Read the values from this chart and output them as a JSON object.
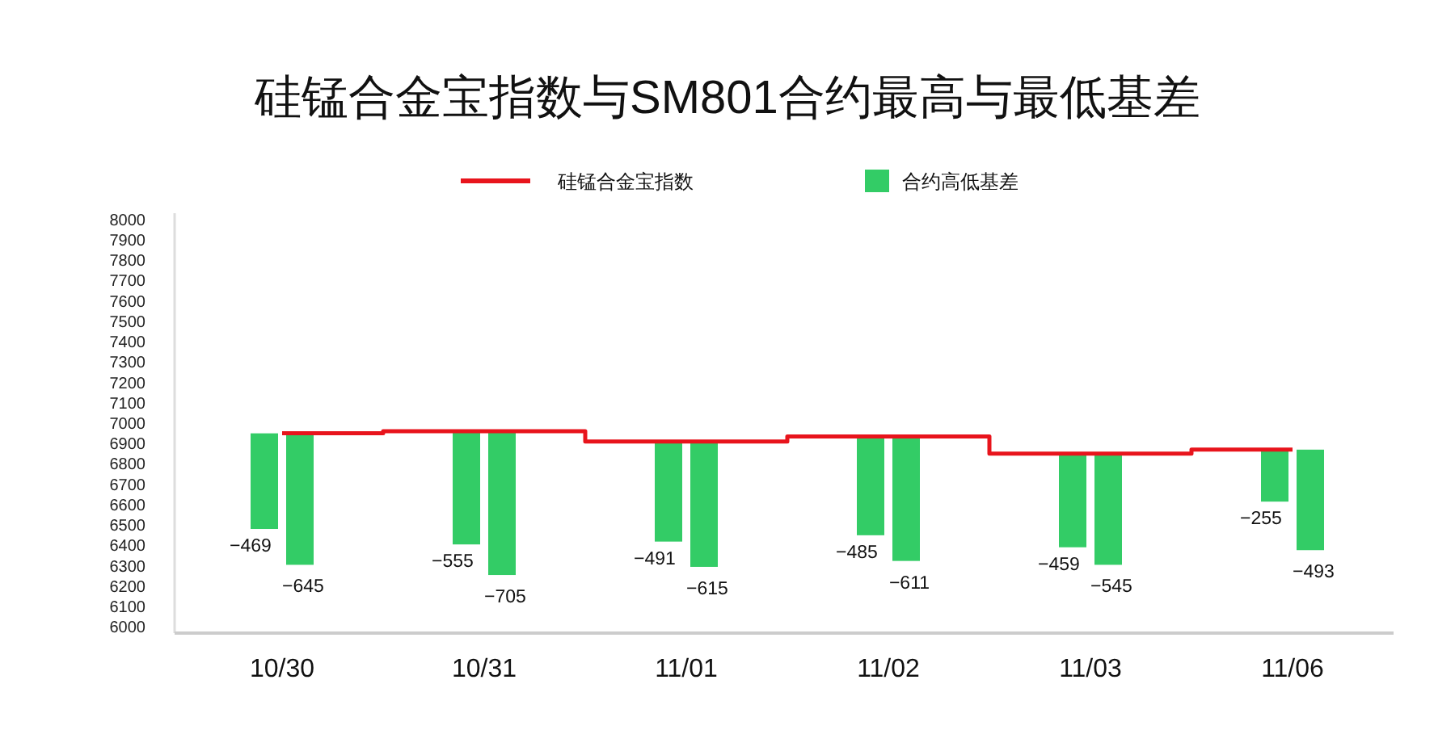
{
  "chart_data": {
    "type": "bar",
    "title": "硅锰合金宝指数与SM801合约最高与最低基差",
    "categories": [
      "10/30",
      "10/31",
      "11/01",
      "11/02",
      "11/03",
      "11/06"
    ],
    "series": [
      {
        "name": "硅锰合金宝指数",
        "type": "step",
        "color": "#e8141c",
        "values": [
          6950,
          6960,
          6910,
          6935,
          6850,
          6870
        ]
      },
      {
        "name": "合约高低基差",
        "color": "#33cc66",
        "values": [
          -469,
          -555,
          -491,
          -485,
          -459,
          -255
        ],
        "value_labels": [
          "−469",
          "−555",
          "−491",
          "−485",
          "−459",
          "−255"
        ],
        "base": [
          6950,
          6960,
          6910,
          6935,
          6850,
          6870
        ]
      },
      {
        "color": "#33cc66",
        "values": [
          -645,
          -705,
          -615,
          -611,
          -545,
          -493
        ],
        "value_labels": [
          "−645",
          "−705",
          "−615",
          "−611",
          "−545",
          "−493"
        ],
        "base": [
          6950,
          6960,
          6910,
          6935,
          6850,
          6870
        ]
      }
    ],
    "ylim": [
      5970,
      8030
    ],
    "yticks": [
      6000,
      6100,
      6200,
      6300,
      6400,
      6500,
      6600,
      6700,
      6800,
      6900,
      7000,
      7100,
      7200,
      7300,
      7400,
      7500,
      7600,
      7700,
      7800,
      7900,
      8000
    ],
    "legend": "top",
    "grid": false
  }
}
